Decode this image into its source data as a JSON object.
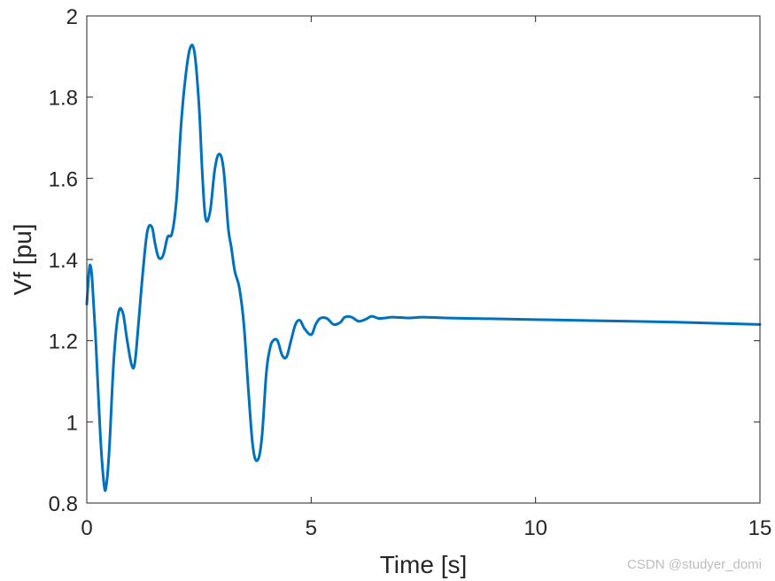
{
  "chart_data": {
    "type": "line",
    "title": "",
    "xlabel": "Time [s]",
    "ylabel": "Vf [pu]",
    "xlim": [
      0,
      15
    ],
    "ylim": [
      0.8,
      2
    ],
    "xticks": [
      "0",
      "5",
      "10",
      "15"
    ],
    "yticks": [
      "0.8",
      "1",
      "1.2",
      "1.4",
      "1.6",
      "1.8",
      "2"
    ],
    "grid": false,
    "series": [
      {
        "color": "#0072BD",
        "x": [
          0,
          0.05,
          0.08,
          0.12,
          0.2,
          0.3,
          0.38,
          0.43,
          0.5,
          0.6,
          0.7,
          0.8,
          0.9,
          1.0,
          1.07,
          1.15,
          1.25,
          1.35,
          1.45,
          1.52,
          1.6,
          1.7,
          1.8,
          1.9,
          2.0,
          2.1,
          2.2,
          2.3,
          2.4,
          2.5,
          2.58,
          2.65,
          2.75,
          2.85,
          2.95,
          3.05,
          3.15,
          3.22,
          3.3,
          3.4,
          3.5,
          3.6,
          3.7,
          3.8,
          3.9,
          4.0,
          4.08,
          4.15,
          4.25,
          4.35,
          4.45,
          4.55,
          4.65,
          4.75,
          4.85,
          5.0,
          5.1,
          5.2,
          5.35,
          5.5,
          5.65,
          5.75,
          5.9,
          6.05,
          6.2,
          6.35,
          6.5,
          6.65,
          6.8,
          7.0,
          7.2,
          7.5,
          8.0,
          9.0,
          10.0,
          11.0,
          12.0,
          13.0,
          14.0,
          15.0
        ],
        "y": [
          1.29,
          1.37,
          1.385,
          1.35,
          1.2,
          0.97,
          0.85,
          0.84,
          0.93,
          1.15,
          1.265,
          1.27,
          1.2,
          1.14,
          1.145,
          1.24,
          1.37,
          1.47,
          1.48,
          1.44,
          1.405,
          1.41,
          1.455,
          1.465,
          1.55,
          1.73,
          1.85,
          1.92,
          1.91,
          1.78,
          1.6,
          1.5,
          1.52,
          1.62,
          1.66,
          1.62,
          1.48,
          1.43,
          1.37,
          1.33,
          1.24,
          1.08,
          0.94,
          0.905,
          0.96,
          1.12,
          1.18,
          1.2,
          1.2,
          1.165,
          1.16,
          1.2,
          1.24,
          1.25,
          1.23,
          1.215,
          1.24,
          1.255,
          1.255,
          1.24,
          1.245,
          1.258,
          1.258,
          1.248,
          1.252,
          1.26,
          1.255,
          1.256,
          1.258,
          1.257,
          1.256,
          1.258,
          1.256,
          1.254,
          1.252,
          1.25,
          1.248,
          1.246,
          1.243,
          1.24
        ]
      }
    ]
  },
  "watermark": "CSDN @studyer_domi"
}
